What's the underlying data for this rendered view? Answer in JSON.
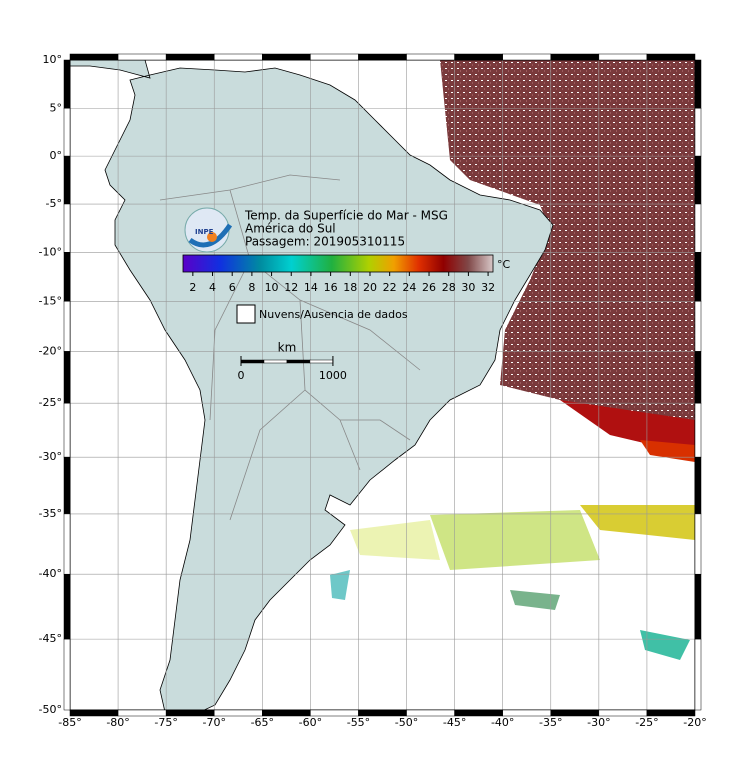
{
  "map": {
    "title": [
      "Temp. da Superfície do Mar - MSG",
      "América do Sul",
      "Passagem: 201905310115"
    ],
    "logo_text": "INPE",
    "xlim": [
      -85,
      -20
    ],
    "ylim": [
      -50,
      10
    ],
    "xticks": [
      {
        "value": -85,
        "label": "-85°"
      },
      {
        "value": -80,
        "label": "-80°"
      },
      {
        "value": -75,
        "label": "-75°"
      },
      {
        "value": -70,
        "label": "-70°"
      },
      {
        "value": -65,
        "label": "-65°"
      },
      {
        "value": -60,
        "label": "-60°"
      },
      {
        "value": -55,
        "label": "-55°"
      },
      {
        "value": -50,
        "label": "-50°"
      },
      {
        "value": -45,
        "label": "-45°"
      },
      {
        "value": -40,
        "label": "-40°"
      },
      {
        "value": -35,
        "label": "-35°"
      },
      {
        "value": -30,
        "label": "-30°"
      },
      {
        "value": -25,
        "label": "-25°"
      },
      {
        "value": -20,
        "label": "-20°"
      }
    ],
    "yticks": [
      {
        "value": 10,
        "label": "10°"
      },
      {
        "value": 5,
        "label": "5°"
      },
      {
        "value": 0,
        "label": "0°"
      },
      {
        "value": -5,
        "label": "-5°"
      },
      {
        "value": -10,
        "label": "-10°"
      },
      {
        "value": -15,
        "label": "-15°"
      },
      {
        "value": -20,
        "label": "-20°"
      },
      {
        "value": -25,
        "label": "-25°"
      },
      {
        "value": -30,
        "label": "-30°"
      },
      {
        "value": -35,
        "label": "-35°"
      },
      {
        "value": -40,
        "label": "-40°"
      },
      {
        "value": -45,
        "label": "-45°"
      },
      {
        "value": -50,
        "label": "-50°"
      }
    ],
    "colorbar": {
      "range": [
        1,
        32.5
      ],
      "ticks": [
        2,
        4,
        6,
        8,
        10,
        12,
        14,
        16,
        18,
        20,
        22,
        24,
        26,
        28,
        30,
        32
      ],
      "unit": "°C"
    },
    "legend": "Nuvens/Ausencia de dados",
    "scale_bar": {
      "unit": "km",
      "ticks": [
        0,
        1000
      ]
    }
  }
}
